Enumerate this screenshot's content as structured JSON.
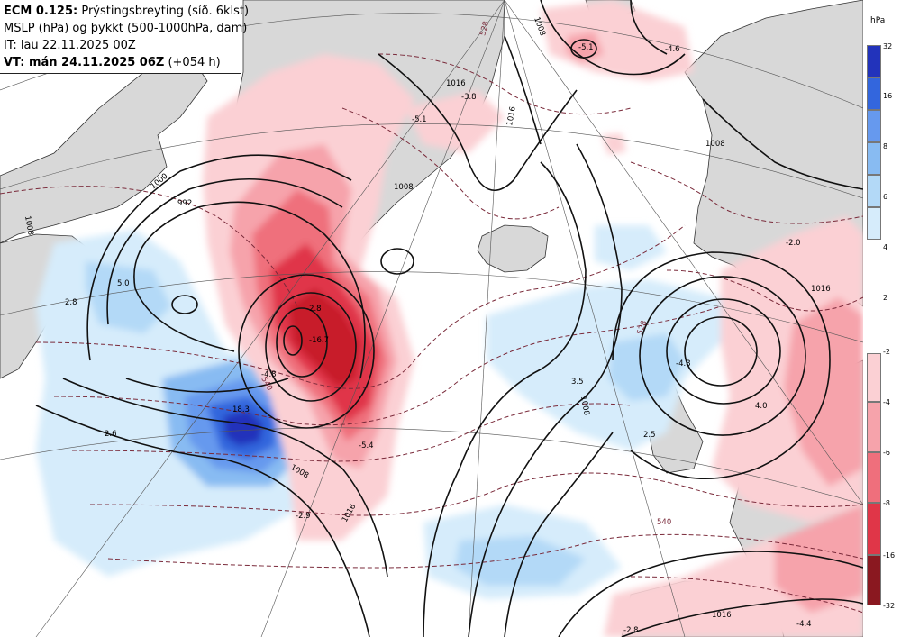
{
  "header": {
    "model": "ECM 0.125:",
    "title": "Prýstingsbreyting (síð. 6klst)",
    "line2": "MSLP (hPa) og þykkt (500-1000hPa, dam)",
    "line3": "IT: lau 22.11.2025 00Z",
    "vt_label": "VT: mán 24.11.2025 06Z",
    "lead": "(+054 h)"
  },
  "legend": {
    "unit": "hPa",
    "positive": [
      {
        "label": "32",
        "color": "#2233bb"
      },
      {
        "label": "16",
        "color": "#3366dd"
      },
      {
        "label": "8",
        "color": "#6699ee"
      },
      {
        "label": "6",
        "color": "#88bbf2"
      },
      {
        "label": "4",
        "color": "#b3d9f7"
      },
      {
        "label": "2",
        "color": "#d6ecfb"
      }
    ],
    "negative": [
      {
        "label": "-2",
        "color": "#fbd0d4"
      },
      {
        "label": "-4",
        "color": "#f6a3ab"
      },
      {
        "label": "-6",
        "color": "#ef6f7c"
      },
      {
        "label": "-8",
        "color": "#e03648"
      },
      {
        "label": "-16",
        "color": "#c81e2c"
      },
      {
        "label": "-32",
        "color": "#8a1820"
      }
    ]
  },
  "map_labels": {
    "tendency": [
      "5.0",
      "2.8",
      "18.3",
      "2.6",
      "-16.7",
      "-5.4",
      "-2.9",
      "-5.1",
      "-4.6",
      "-3.8",
      "-5.1",
      "-4.8",
      "3.5",
      "-2.8",
      "-4.8",
      "4.0",
      "2.5",
      "-2.8",
      "-4.4",
      "-2.0"
    ],
    "isobars": [
      "1008",
      "1016",
      "1008",
      "1016",
      "1000",
      "1008",
      "1008",
      "1016",
      "1008",
      "1016",
      "1016",
      "992",
      "1008"
    ],
    "thickness": [
      "540",
      "528",
      "528",
      "540"
    ]
  }
}
